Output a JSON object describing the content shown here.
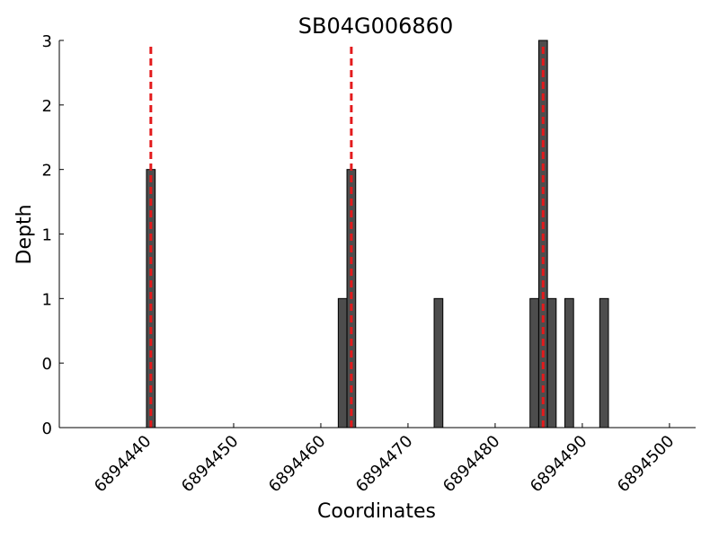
{
  "chart_data": {
    "type": "bar",
    "title": "SB04G006860",
    "xlabel": "Coordinates",
    "ylabel": "Depth",
    "xlim": [
      6894430,
      6894503
    ],
    "ylim": [
      0,
      3
    ],
    "x_ticks": [
      6894440,
      6894450,
      6894460,
      6894470,
      6894480,
      6894490,
      6894500
    ],
    "x_tick_labels": [
      "6894440",
      "6894450",
      "6894460",
      "6894470",
      "6894480",
      "6894490",
      "6894500"
    ],
    "y_ticks": [
      0,
      0.5,
      1,
      1.5,
      2,
      2.5,
      3
    ],
    "y_tick_labels": [
      "0",
      "0",
      "1",
      "1",
      "2",
      "2",
      "3"
    ],
    "bar_color": "#4d4d4d",
    "bar_width": 1,
    "bars": [
      {
        "x": 6894440,
        "value": 2
      },
      {
        "x": 6894462,
        "value": 1
      },
      {
        "x": 6894463,
        "value": 2
      },
      {
        "x": 6894473,
        "value": 1
      },
      {
        "x": 6894484,
        "value": 1
      },
      {
        "x": 6894485,
        "value": 3
      },
      {
        "x": 6894486,
        "value": 1
      },
      {
        "x": 6894488,
        "value": 1
      },
      {
        "x": 6894492,
        "value": 1
      }
    ],
    "markers": {
      "style": "dashed",
      "color": "#e31a1c",
      "x": [
        6894440.5,
        6894463.5,
        6894485.5
      ]
    },
    "grid": false,
    "legend": "none"
  }
}
